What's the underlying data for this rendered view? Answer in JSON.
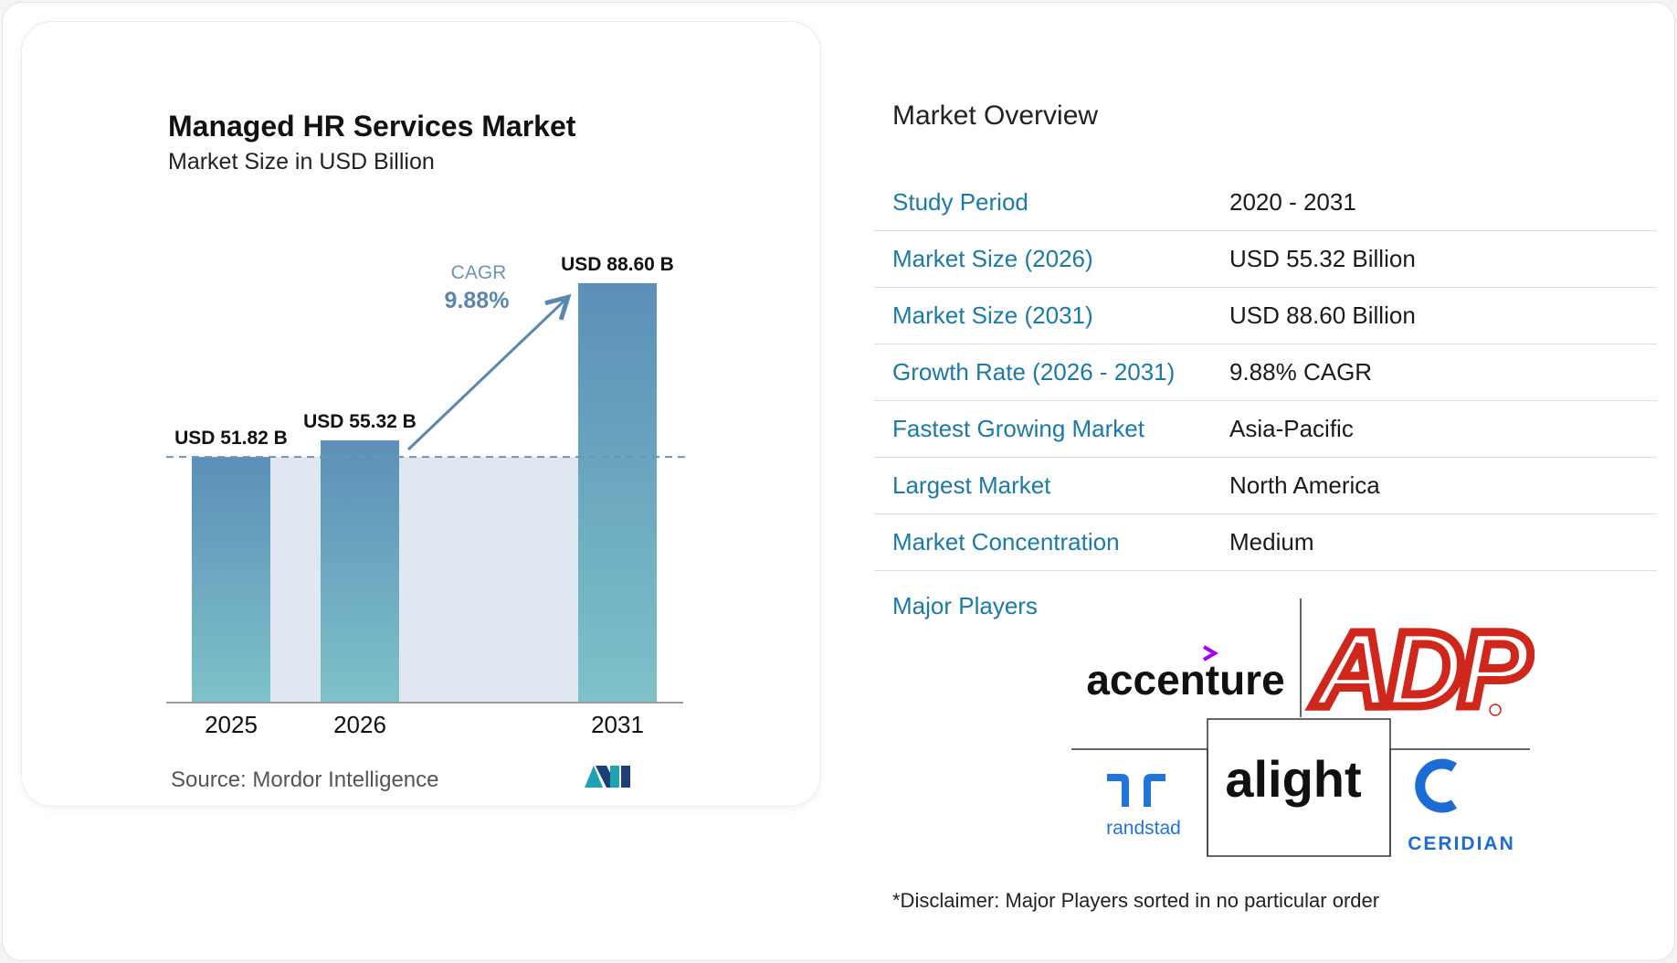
{
  "chart": {
    "title": "Managed HR Services Market",
    "subtitle": "Market Size in USD Billion",
    "source": "Source: Mordor Intelligence",
    "cagr_label": "CAGR",
    "cagr_value": "9.88%"
  },
  "chart_data": {
    "type": "bar",
    "categories": [
      "2025",
      "2026",
      "2031"
    ],
    "values": [
      51.82,
      55.32,
      88.6
    ],
    "data_labels": [
      "USD 51.82 B",
      "USD 55.32 B",
      "USD 88.60 B"
    ],
    "title": "Managed HR Services Market",
    "subtitle": "Market Size in USD Billion",
    "xlabel": "",
    "ylabel": "",
    "ylim": [
      0,
      90
    ],
    "grid": false,
    "annotation": "CAGR 9.88%",
    "colors": {
      "bar_top": "#5b8fb8",
      "bar_bottom": "#7ec2c8",
      "band": "#dfe8f1",
      "arrow": "#5b87ad"
    }
  },
  "overview": {
    "title": "Market Overview",
    "rows": [
      {
        "label": "Study Period",
        "value": "2020 - 2031"
      },
      {
        "label": "Market Size (2026)",
        "value": "USD 55.32 Billion"
      },
      {
        "label": "Market Size (2031)",
        "value": "USD 88.60 Billion"
      },
      {
        "label": "Growth Rate (2026 - 2031)",
        "value": "9.88% CAGR"
      },
      {
        "label": "Fastest Growing Market",
        "value": "Asia-Pacific"
      },
      {
        "label": "Largest Market",
        "value": "North America"
      },
      {
        "label": "Market Concentration",
        "value": "Medium"
      }
    ],
    "players_label": "Major Players",
    "players": [
      "accenture",
      "ADP",
      "randstad",
      "alight",
      "CERIDIAN"
    ],
    "disclaimer": "*Disclaimer: Major Players sorted in no particular order"
  },
  "colors": {
    "accent": "#1b7aa6",
    "adp_red": "#d0271d",
    "accenture_purple": "#a100ff",
    "randstad_blue": "#2175d9",
    "ceridian_blue": "#1c6cd6"
  }
}
